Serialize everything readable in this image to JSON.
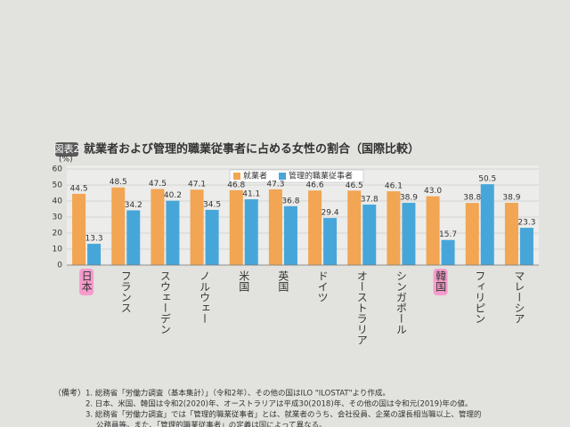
{
  "chart_data": {
    "type": "bar",
    "figure_label": "図表2",
    "title": "就業者および管理的職業従事者に占める女性の割合（国際比較）",
    "y_unit": "(%)",
    "categories": [
      "日本",
      "フランス",
      "スウェーデン",
      "ノルウェー",
      "米国",
      "英国",
      "ドイツ",
      "オーストラリア",
      "シンガポール",
      "韓国",
      "フィリピン",
      "マレーシア"
    ],
    "series": [
      {
        "name": "就業者",
        "color": "#f2a553",
        "values": [
          44.5,
          48.5,
          47.5,
          47.1,
          46.8,
          47.3,
          46.6,
          46.5,
          46.1,
          43.0,
          38.8,
          38.9
        ],
        "value_labels": [
          "44.5",
          "48.5",
          "47.5",
          "47.1",
          "46.8",
          "47.3",
          "46.6",
          "46.5",
          "46.1",
          "43.0",
          "38.8",
          "38.9"
        ]
      },
      {
        "name": "管理的職業従事者",
        "color": "#47a6d9",
        "values": [
          13.3,
          34.2,
          40.2,
          34.5,
          41.1,
          36.8,
          29.4,
          37.8,
          38.9,
          15.7,
          50.5,
          23.3
        ],
        "value_labels": [
          "13.3",
          "34.2",
          "40.2",
          "34.5",
          "41.1",
          "36.8",
          "29.4",
          "37.8",
          "38.9",
          "15.7",
          "50.5",
          "23.3"
        ]
      }
    ],
    "ylim": [
      0,
      60
    ],
    "yticks": [
      0,
      10,
      20,
      30,
      40,
      50,
      60
    ],
    "grid": true,
    "legend": "top",
    "highlight": [
      0,
      9
    ],
    "highlight_color": "#f59ccc",
    "notes_label": "（備考）",
    "notes": [
      "1. 総務省「労働力調査（基本集計）」（令和2年）、その他の国はILO \"ILOSTAT\"より作成。",
      "2. 日本、米国、韓国は令和2(2020)年、オーストラリアは平成30(2018)年、その他の国は令和元(2019)年の値。",
      "3. 総務省「労働力調査」では「管理的職業従事者」とは、就業者のうち、会社役員、企業の課長相当職以上、管理的",
      "公務員等。また、「管理的職業従事者」の定義は国によって異なる。"
    ]
  }
}
